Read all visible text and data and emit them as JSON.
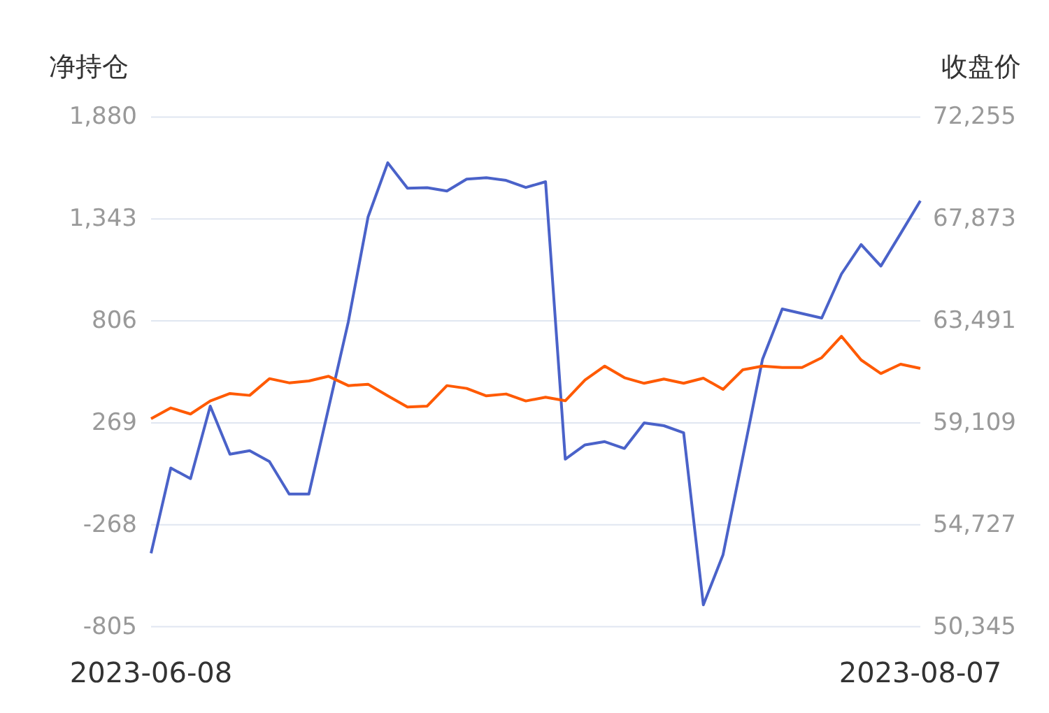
{
  "chart_data": {
    "type": "line",
    "ylabel": "净持仓",
    "y2label": "收盘价",
    "categories": [
      "2023-06-08",
      null,
      null,
      null,
      null,
      null,
      null,
      null,
      null,
      null,
      null,
      null,
      null,
      null,
      null,
      null,
      null,
      null,
      null,
      null,
      null,
      null,
      null,
      null,
      null,
      null,
      null,
      null,
      null,
      null,
      null,
      null,
      null,
      null,
      null,
      null,
      null,
      null,
      null,
      "2023-08-07"
    ],
    "series": [
      {
        "color": "#4a62c9",
        "values": [
          -418,
          31,
          -25,
          357,
          104,
          122,
          65,
          -106,
          -106,
          347,
          801,
          1353,
          1639,
          1505,
          1508,
          1490,
          1553,
          1560,
          1546,
          1509,
          1539,
          78,
          153,
          170,
          134,
          269,
          254,
          217,
          -690,
          -425,
          89,
          604,
          869,
          845,
          821,
          1053,
          1208,
          1095,
          1266,
          1439
        ]
      },
      {
        "color": "#ff5a00",
        "axis": "y2",
        "values": [
          59290,
          59750,
          59490,
          60050,
          60370,
          60290,
          61010,
          60830,
          60910,
          61110,
          60710,
          60770,
          60270,
          59790,
          59830,
          60710,
          60590,
          60270,
          60350,
          60050,
          60210,
          60060,
          60950,
          61550,
          61050,
          60810,
          60990,
          60810,
          61030,
          60550,
          61390,
          61550,
          61490,
          61490,
          61910,
          62830,
          61810,
          61230,
          61630,
          61450
        ]
      }
    ],
    "ylim": [
      -805,
      1880
    ],
    "yticks": [
      {
        "value": -805,
        "label": "-805"
      },
      {
        "value": -268,
        "label": "-268"
      },
      {
        "value": 269,
        "label": "269"
      },
      {
        "value": 806,
        "label": "806"
      },
      {
        "value": 1343,
        "label": "1,343"
      },
      {
        "value": 1880,
        "label": "1,880"
      }
    ],
    "y2lim": [
      50345,
      72255
    ],
    "y2ticks": [
      {
        "value": 50345,
        "label": "50,345"
      },
      {
        "value": 54727,
        "label": "54,727"
      },
      {
        "value": 59109,
        "label": "59,109"
      },
      {
        "value": 63491,
        "label": "63,491"
      },
      {
        "value": 67873,
        "label": "67,873"
      },
      {
        "value": 72255,
        "label": "72,255"
      }
    ],
    "grid": "y",
    "line_style": "solid",
    "marker": "none"
  }
}
